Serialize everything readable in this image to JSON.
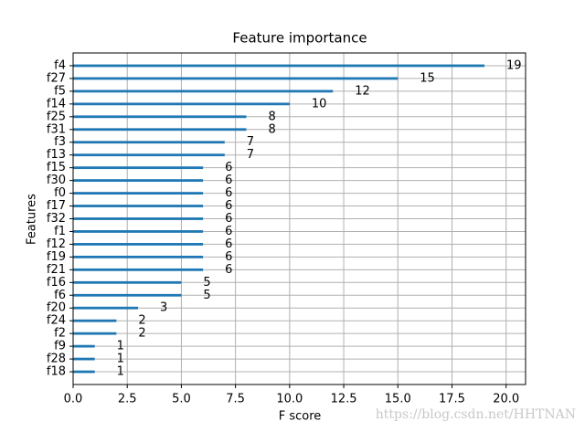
{
  "chart_data": {
    "type": "barh",
    "title": "Feature importance",
    "xlabel": "F score",
    "ylabel": "Features",
    "categories": [
      "f4",
      "f27",
      "f5",
      "f14",
      "f25",
      "f31",
      "f3",
      "f13",
      "f15",
      "f30",
      "f0",
      "f17",
      "f32",
      "f1",
      "f12",
      "f19",
      "f21",
      "f16",
      "f6",
      "f20",
      "f24",
      "f2",
      "f9",
      "f28",
      "f18"
    ],
    "values": [
      19,
      15,
      12,
      10,
      8,
      8,
      7,
      7,
      6,
      6,
      6,
      6,
      6,
      6,
      6,
      6,
      6,
      5,
      5,
      3,
      2,
      2,
      1,
      1,
      1
    ],
    "color": "#1f77b4",
    "xlim": [
      0,
      20.9
    ],
    "xticks": [
      {
        "value": 0,
        "label": "0.0"
      },
      2.5,
      {
        "value": 5,
        "label": "5.0"
      },
      7.5,
      {
        "value": 10,
        "label": "10.0"
      },
      12.5,
      {
        "value": 15,
        "label": "15.0"
      },
      17.5,
      {
        "value": 20,
        "label": "20.0"
      }
    ],
    "grid": true,
    "watermark": "https://blog.csdn.net/HHTNAN"
  }
}
